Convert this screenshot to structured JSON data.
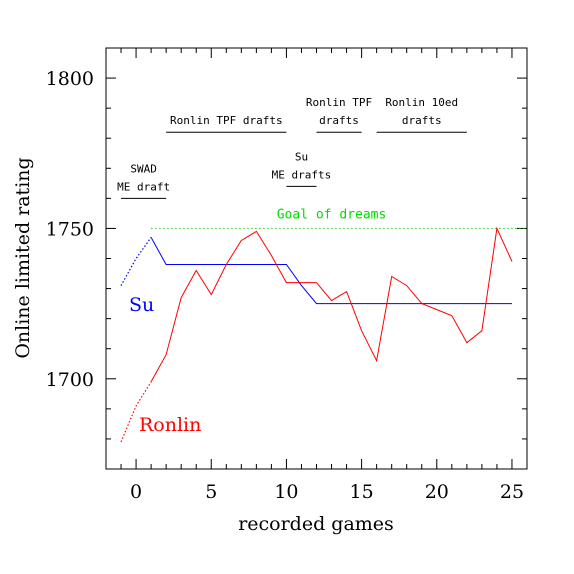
{
  "chart_data": {
    "type": "line",
    "xlabel": "recorded games",
    "ylabel": "Online limited rating",
    "xlim": [
      -2,
      26
    ],
    "ylim": [
      1670,
      1810
    ],
    "xticks": [
      0,
      5,
      10,
      15,
      20,
      25
    ],
    "yticks": [
      1700,
      1750,
      1800
    ],
    "grid": false,
    "series": [
      {
        "name": "Su",
        "color": "#0000ff",
        "dotted": [
          [
            -1,
            1731
          ],
          [
            0,
            1740
          ],
          [
            1,
            1747
          ]
        ],
        "values": [
          [
            1,
            1747
          ],
          [
            2,
            1738
          ],
          [
            9,
            1738
          ],
          [
            10,
            1738
          ],
          [
            11,
            1731
          ],
          [
            12,
            1725
          ],
          [
            13,
            1725
          ],
          [
            25,
            1725
          ]
        ]
      },
      {
        "name": "Ronlin",
        "color": "#ff0000",
        "dotted": [
          [
            -1,
            1679
          ],
          [
            0,
            1691
          ],
          [
            1,
            1699
          ]
        ],
        "values": [
          [
            1,
            1699
          ],
          [
            2,
            1708
          ],
          [
            3,
            1727
          ],
          [
            4,
            1736
          ],
          [
            5,
            1728
          ],
          [
            6,
            1738
          ],
          [
            7,
            1746
          ],
          [
            8,
            1749
          ],
          [
            9,
            1741
          ],
          [
            10,
            1732
          ],
          [
            11,
            1732
          ],
          [
            12,
            1732
          ],
          [
            13,
            1726
          ],
          [
            14,
            1729
          ],
          [
            15,
            1716
          ],
          [
            16,
            1706
          ],
          [
            17,
            1734
          ],
          [
            18,
            1731
          ],
          [
            19,
            1725
          ],
          [
            20,
            1723
          ],
          [
            21,
            1721
          ],
          [
            22,
            1712
          ],
          [
            23,
            1716
          ],
          [
            24,
            1750
          ],
          [
            25,
            1739
          ]
        ]
      }
    ],
    "goal_line": {
      "y": 1750,
      "x_range": [
        1,
        25
      ],
      "label": "Goal of dreams",
      "color": "#00dd00"
    },
    "annotations": [
      {
        "lines": [
          "SWAD",
          "ME draft"
        ],
        "x_range": [
          -1,
          2
        ],
        "y": 1760
      },
      {
        "lines": [
          "Ronlin TPF drafts"
        ],
        "x_range": [
          2,
          10
        ],
        "y": 1782
      },
      {
        "lines": [
          "Su",
          "ME drafts"
        ],
        "x_range": [
          10,
          12
        ],
        "y": 1764
      },
      {
        "lines": [
          "Ronlin TPF",
          "drafts"
        ],
        "x_range": [
          12,
          15
        ],
        "y": 1782
      },
      {
        "lines": [
          "Ronlin 10ed",
          "drafts"
        ],
        "x_range": [
          16,
          22
        ],
        "y": 1782
      }
    ]
  }
}
